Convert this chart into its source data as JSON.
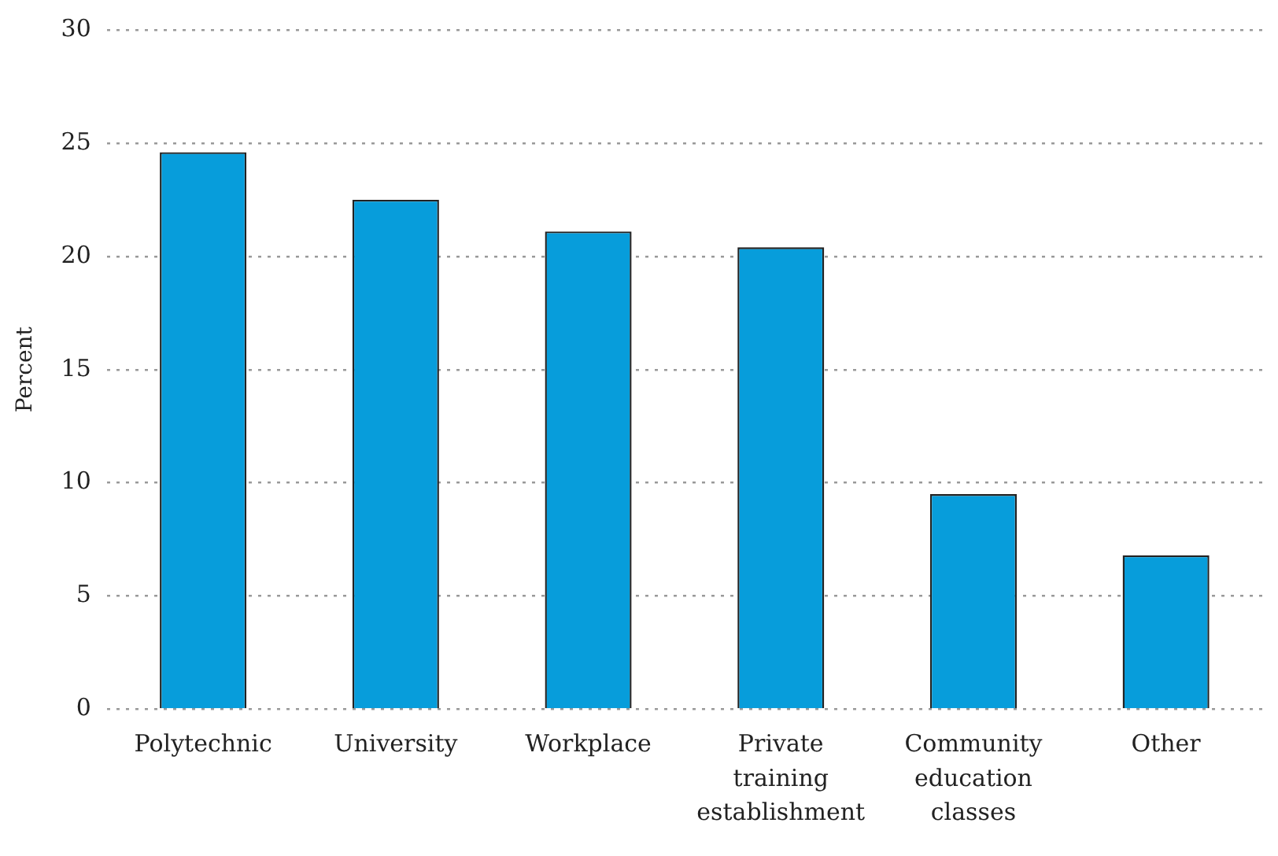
{
  "chart_data": {
    "type": "bar",
    "ylabel": "Percent",
    "categories": [
      "Polytechnic",
      "University",
      "Workplace",
      "Private training establishment",
      "Community education classes",
      "Other"
    ],
    "values": [
      24.6,
      22.5,
      21.1,
      20.4,
      9.5,
      6.8
    ],
    "color": "#079ddb",
    "ylim": [
      0,
      30
    ],
    "yticks": [
      0,
      5,
      10,
      15,
      20,
      25,
      30
    ],
    "grid": "y"
  }
}
